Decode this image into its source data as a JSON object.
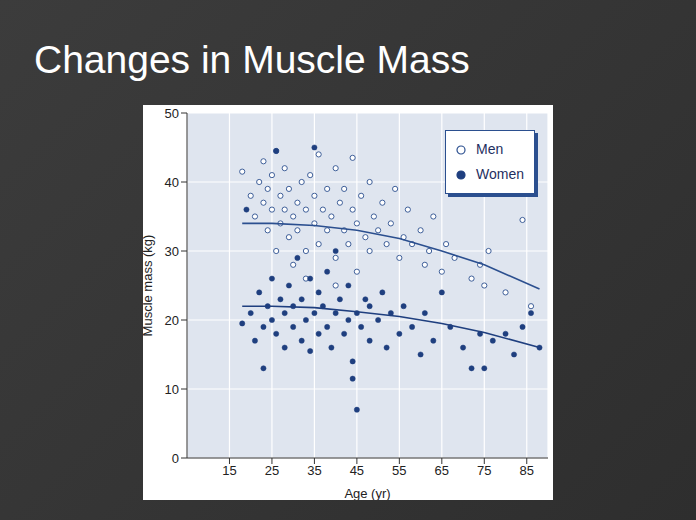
{
  "chart_data": {
    "type": "scatter",
    "title": "Changes in Muscle Mass",
    "x_label": "Age (yr)",
    "y_label": "Muscle mass (kg)",
    "xlim": [
      5,
      90
    ],
    "xticks": [
      15,
      25,
      35,
      45,
      55,
      65,
      75,
      85
    ],
    "ylim": [
      0,
      50
    ],
    "yticks": [
      0,
      10,
      20,
      30,
      40,
      50
    ],
    "grid": true,
    "legend": "top-right",
    "series": [
      {
        "name": "Men",
        "type": "scatter",
        "marker": "circle_open",
        "color": "#2b4f8f",
        "values": [
          [
            18,
            41.5
          ],
          [
            20,
            38
          ],
          [
            21,
            35
          ],
          [
            22,
            40
          ],
          [
            23,
            37
          ],
          [
            23,
            43
          ],
          [
            24,
            33
          ],
          [
            24,
            39
          ],
          [
            25,
            36
          ],
          [
            25,
            41
          ],
          [
            26,
            30
          ],
          [
            26,
            44.5
          ],
          [
            27,
            34
          ],
          [
            27,
            38
          ],
          [
            28,
            36
          ],
          [
            28,
            42
          ],
          [
            29,
            32
          ],
          [
            29,
            39
          ],
          [
            30,
            35
          ],
          [
            30,
            28
          ],
          [
            31,
            37
          ],
          [
            31,
            33
          ],
          [
            32,
            40
          ],
          [
            33,
            36
          ],
          [
            33,
            30
          ],
          [
            34,
            41
          ],
          [
            35,
            34
          ],
          [
            35,
            38
          ],
          [
            36,
            44
          ],
          [
            36,
            31
          ],
          [
            37,
            36
          ],
          [
            38,
            33
          ],
          [
            38,
            39
          ],
          [
            39,
            35
          ],
          [
            40,
            42
          ],
          [
            40,
            29
          ],
          [
            41,
            37
          ],
          [
            42,
            33
          ],
          [
            42,
            39
          ],
          [
            43,
            31
          ],
          [
            44,
            36
          ],
          [
            44,
            43.5
          ],
          [
            45,
            34
          ],
          [
            46,
            38
          ],
          [
            47,
            32
          ],
          [
            48,
            40
          ],
          [
            48,
            30
          ],
          [
            49,
            35
          ],
          [
            50,
            33
          ],
          [
            51,
            37
          ],
          [
            52,
            31
          ],
          [
            53,
            34
          ],
          [
            54,
            39
          ],
          [
            55,
            29
          ],
          [
            56,
            32
          ],
          [
            57,
            36
          ],
          [
            58,
            31
          ],
          [
            60,
            33
          ],
          [
            61,
            28
          ],
          [
            62,
            30
          ],
          [
            63,
            35
          ],
          [
            65,
            27
          ],
          [
            66,
            31
          ],
          [
            68,
            29
          ],
          [
            72,
            26
          ],
          [
            74,
            28
          ],
          [
            75,
            25
          ],
          [
            76,
            30
          ],
          [
            80,
            24
          ],
          [
            84,
            34.5
          ],
          [
            86,
            22
          ],
          [
            40,
            25
          ],
          [
            45,
            27
          ],
          [
            33,
            26
          ]
        ]
      },
      {
        "name": "Women",
        "type": "scatter",
        "marker": "circle",
        "color": "#1f3f7f",
        "values": [
          [
            18,
            19.5
          ],
          [
            19,
            36
          ],
          [
            20,
            21
          ],
          [
            21,
            17
          ],
          [
            22,
            24
          ],
          [
            23,
            19
          ],
          [
            23,
            13
          ],
          [
            24,
            22
          ],
          [
            25,
            20
          ],
          [
            25,
            26
          ],
          [
            26,
            18
          ],
          [
            26,
            44.5
          ],
          [
            27,
            23
          ],
          [
            28,
            16
          ],
          [
            28,
            21
          ],
          [
            29,
            25
          ],
          [
            30,
            19
          ],
          [
            30,
            22
          ],
          [
            31,
            29
          ],
          [
            32,
            17
          ],
          [
            32,
            23
          ],
          [
            33,
            20
          ],
          [
            34,
            26
          ],
          [
            34,
            15.5
          ],
          [
            35,
            21
          ],
          [
            35,
            45
          ],
          [
            36,
            18
          ],
          [
            36,
            24
          ],
          [
            37,
            22
          ],
          [
            38,
            19
          ],
          [
            38,
            27
          ],
          [
            39,
            16
          ],
          [
            40,
            21
          ],
          [
            40,
            30
          ],
          [
            41,
            23
          ],
          [
            42,
            18
          ],
          [
            43,
            20
          ],
          [
            43,
            25
          ],
          [
            44,
            11.5
          ],
          [
            44,
            14
          ],
          [
            45,
            21
          ],
          [
            45,
            7
          ],
          [
            46,
            19
          ],
          [
            47,
            23
          ],
          [
            48,
            17
          ],
          [
            48,
            22
          ],
          [
            50,
            20
          ],
          [
            51,
            24
          ],
          [
            52,
            16
          ],
          [
            53,
            21
          ],
          [
            55,
            18
          ],
          [
            56,
            22
          ],
          [
            58,
            19
          ],
          [
            60,
            15
          ],
          [
            61,
            21
          ],
          [
            63,
            17
          ],
          [
            65,
            24
          ],
          [
            67,
            19
          ],
          [
            70,
            16
          ],
          [
            72,
            13
          ],
          [
            74,
            18
          ],
          [
            75,
            13
          ],
          [
            77,
            17
          ],
          [
            80,
            18
          ],
          [
            82,
            15
          ],
          [
            84,
            19
          ],
          [
            86,
            21
          ],
          [
            88,
            16
          ]
        ]
      },
      {
        "type": "line",
        "color": "#2b4f8f",
        "values": [
          [
            18,
            34
          ],
          [
            25,
            34
          ],
          [
            35,
            33.7
          ],
          [
            45,
            33
          ],
          [
            55,
            31.8
          ],
          [
            65,
            30
          ],
          [
            75,
            28
          ],
          [
            88,
            24.5
          ]
        ]
      },
      {
        "type": "line",
        "color": "#1f3f7f",
        "values": [
          [
            18,
            22
          ],
          [
            25,
            22
          ],
          [
            35,
            21.8
          ],
          [
            45,
            21.2
          ],
          [
            55,
            20.5
          ],
          [
            65,
            19.5
          ],
          [
            75,
            18.2
          ],
          [
            88,
            16
          ]
        ]
      }
    ]
  }
}
